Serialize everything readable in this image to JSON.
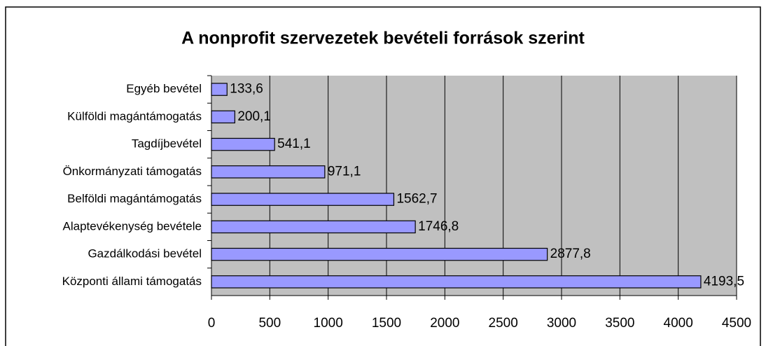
{
  "chart_data": {
    "type": "bar",
    "orientation": "horizontal",
    "title": "A nonprofit szervezetek bevételi források szerint",
    "categories": [
      "Egyéb bevétel",
      "Külföldi magántámogatás",
      "Tagdíjbevétel",
      "Önkormányzati támogatás",
      "Belföldi magántámogatás",
      "Alaptevékenység bevétele",
      "Gazdálkodási bevétel",
      "Központi állami támogatás"
    ],
    "values": [
      133.6,
      200.1,
      541.1,
      971.1,
      1562.7,
      1746.8,
      2877.8,
      4193.5
    ],
    "value_labels": [
      "133,6",
      "200,1",
      "541,1",
      "971,1",
      "1562,7",
      "1746,8",
      "2877,8",
      "4193,5"
    ],
    "color": "#9999ff",
    "xlim": [
      0,
      4500
    ],
    "xticks": [
      0,
      500,
      1000,
      1500,
      2000,
      2500,
      3000,
      3500,
      4000,
      4500
    ],
    "grid": true
  }
}
